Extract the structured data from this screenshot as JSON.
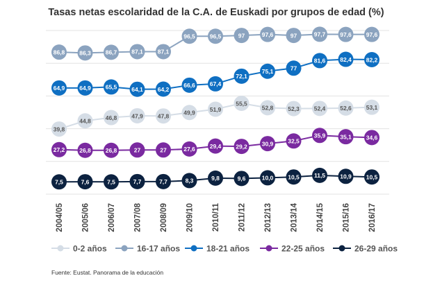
{
  "chart_data": {
    "type": "line",
    "title": "Tasas netas escolaridad de la C.A. de Euskadi por grupos de edad (%)",
    "categories": [
      "2004/05",
      "2005/06",
      "2006/07",
      "2007/08",
      "2008/09",
      "2009/10",
      "2010/11",
      "2011/12",
      "2012/13",
      "2013/14",
      "2014/15",
      "2015/16",
      "2016/17"
    ],
    "ylim": [
      0,
      100
    ],
    "grid": true,
    "legend_position": "bottom",
    "source": "Fuente: Eustat. Panorama de la educación",
    "series": [
      {
        "name": "0-2 años",
        "color": "#d5dde6",
        "label_color": "#555555",
        "values": [
          39.8,
          44.8,
          46.8,
          47.9,
          47.8,
          49.9,
          51.9,
          55.5,
          52.8,
          52.3,
          52.4,
          52.6,
          53.1
        ],
        "labels": [
          "39,8",
          "44,8",
          "46,8",
          "47,9",
          "47,8",
          "49,9",
          "51,9",
          "55,5",
          "52,8",
          "52,3",
          "52,4",
          "52,6",
          "53,1"
        ]
      },
      {
        "name": "16-17 años",
        "color": "#8ba3bf",
        "label_color": "#ffffff",
        "values": [
          86.8,
          86.3,
          86.7,
          87.1,
          87.1,
          96.5,
          96.5,
          97,
          97.6,
          97,
          97.7,
          97.6,
          97.6
        ],
        "labels": [
          "86,8",
          "86,3",
          "86,7",
          "87,1",
          "87,1",
          "96,5",
          "96,5",
          "97",
          "97,6",
          "97",
          "97,7",
          "97,6",
          "97,6"
        ]
      },
      {
        "name": "18-21 años",
        "color": "#0f6fc2",
        "label_color": "#ffffff",
        "values": [
          64.9,
          64.9,
          65.5,
          64.1,
          64.2,
          66.6,
          67.4,
          72.1,
          75.1,
          77,
          81.6,
          82.4,
          82.2
        ],
        "labels": [
          "64,9",
          "64,9",
          "65,5",
          "64,1",
          "64,2",
          "66,6",
          "67,4",
          "72,1",
          "75,1",
          "77",
          "81,6",
          "82,4",
          "82,2"
        ]
      },
      {
        "name": "22-25 años",
        "color": "#7a2aa0",
        "label_color": "#ffffff",
        "values": [
          27.2,
          26.8,
          26.8,
          27,
          27,
          27.6,
          29.4,
          29.2,
          30.9,
          32.5,
          35.9,
          35.1,
          34.6
        ],
        "labels": [
          "27,2",
          "26,8",
          "26,8",
          "27",
          "27",
          "27,6",
          "29,4",
          "29,2",
          "30,9",
          "32,5",
          "35,9",
          "35,1",
          "34,6"
        ]
      },
      {
        "name": "26-29 años",
        "color": "#0c2240",
        "label_color": "#ffffff",
        "values": [
          7.5,
          7.6,
          7.5,
          7.7,
          7.7,
          8.3,
          9.8,
          9.6,
          10.0,
          10.5,
          11.5,
          10.9,
          10.5
        ],
        "labels": [
          "7,5",
          "7,6",
          "7,5",
          "7,7",
          "7,7",
          "8,3",
          "9,8",
          "9,6",
          "10,0",
          "10,5",
          "11,5",
          "10,9",
          "10,5"
        ]
      }
    ]
  }
}
